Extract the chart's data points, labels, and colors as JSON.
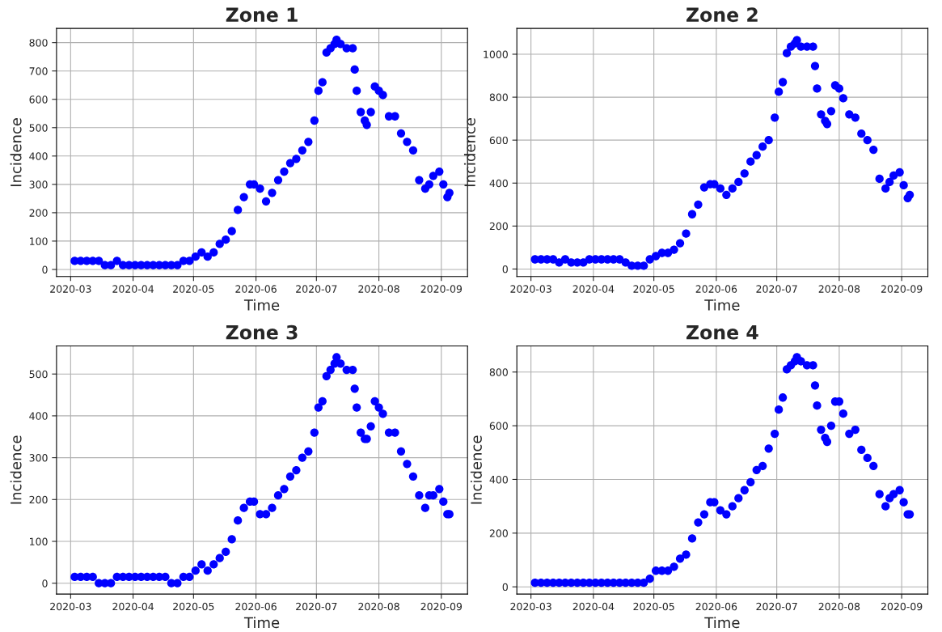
{
  "chart_data": [
    {
      "type": "scatter",
      "title": "Zone 1",
      "xlabel": "Time",
      "ylabel": "Incidence",
      "marker": "circle",
      "grid": true,
      "x": [
        "2020-03-03",
        "2020-03-06",
        "2020-03-09",
        "2020-03-12",
        "2020-03-15",
        "2020-03-18",
        "2020-03-21",
        "2020-03-24",
        "2020-03-27",
        "2020-03-30",
        "2020-04-02",
        "2020-04-05",
        "2020-04-08",
        "2020-04-11",
        "2020-04-14",
        "2020-04-17",
        "2020-04-20",
        "2020-04-23",
        "2020-04-26",
        "2020-04-29",
        "2020-05-02",
        "2020-05-05",
        "2020-05-08",
        "2020-05-11",
        "2020-05-14",
        "2020-05-17",
        "2020-05-20",
        "2020-05-23",
        "2020-05-26",
        "2020-05-29",
        "2020-05-31",
        "2020-06-03",
        "2020-06-06",
        "2020-06-09",
        "2020-06-12",
        "2020-06-15",
        "2020-06-18",
        "2020-06-21",
        "2020-06-24",
        "2020-06-27",
        "2020-06-30",
        "2020-07-02",
        "2020-07-04",
        "2020-07-06",
        "2020-07-08",
        "2020-07-10",
        "2020-07-11",
        "2020-07-13",
        "2020-07-16",
        "2020-07-19",
        "2020-07-20",
        "2020-07-21",
        "2020-07-23",
        "2020-07-25",
        "2020-07-26",
        "2020-07-28",
        "2020-07-30",
        "2020-08-01",
        "2020-08-03",
        "2020-08-06",
        "2020-08-09",
        "2020-08-12",
        "2020-08-15",
        "2020-08-18",
        "2020-08-21",
        "2020-08-24",
        "2020-08-26",
        "2020-08-28",
        "2020-08-31",
        "2020-09-02",
        "2020-09-04",
        "2020-09-05"
      ],
      "series": [
        {
          "color": "#0000ff",
          "values": [
            30,
            30,
            30,
            30,
            30,
            15,
            15,
            30,
            15,
            15,
            15,
            15,
            15,
            15,
            15,
            15,
            15,
            15,
            30,
            30,
            45,
            60,
            45,
            60,
            90,
            105,
            135,
            210,
            255,
            300,
            300,
            285,
            240,
            270,
            315,
            345,
            375,
            390,
            420,
            450,
            525,
            630,
            660,
            765,
            780,
            795,
            810,
            795,
            780,
            780,
            705,
            630,
            555,
            525,
            510,
            555,
            645,
            630,
            615,
            540,
            540,
            480,
            450,
            420,
            315,
            285,
            300,
            330,
            345,
            300,
            255,
            270
          ]
        }
      ],
      "xlim": [
        "2020-02-23",
        "2020-09-14"
      ],
      "xticks": [
        {
          "value": "2020-03-01",
          "label": "2020-03"
        },
        {
          "value": "2020-04-01",
          "label": "2020-04"
        },
        {
          "value": "2020-05-01",
          "label": "2020-05"
        },
        {
          "value": "2020-06-01",
          "label": "2020-06"
        },
        {
          "value": "2020-07-01",
          "label": "2020-07"
        },
        {
          "value": "2020-08-01",
          "label": "2020-08"
        },
        {
          "value": "2020-09-01",
          "label": "2020-09"
        }
      ],
      "ylim": [
        -25,
        850
      ],
      "yticks": [
        0,
        100,
        200,
        300,
        400,
        500,
        600,
        700,
        800
      ]
    },
    {
      "type": "scatter",
      "title": "Zone 2",
      "xlabel": "Time",
      "ylabel": "Incidence",
      "marker": "circle",
      "grid": true,
      "x": [
        "2020-03-03",
        "2020-03-06",
        "2020-03-09",
        "2020-03-12",
        "2020-03-15",
        "2020-03-18",
        "2020-03-21",
        "2020-03-24",
        "2020-03-27",
        "2020-03-30",
        "2020-04-02",
        "2020-04-05",
        "2020-04-08",
        "2020-04-11",
        "2020-04-14",
        "2020-04-17",
        "2020-04-20",
        "2020-04-23",
        "2020-04-26",
        "2020-04-29",
        "2020-05-02",
        "2020-05-05",
        "2020-05-08",
        "2020-05-11",
        "2020-05-14",
        "2020-05-17",
        "2020-05-20",
        "2020-05-23",
        "2020-05-26",
        "2020-05-29",
        "2020-05-31",
        "2020-06-03",
        "2020-06-06",
        "2020-06-09",
        "2020-06-12",
        "2020-06-15",
        "2020-06-18",
        "2020-06-21",
        "2020-06-24",
        "2020-06-27",
        "2020-06-30",
        "2020-07-02",
        "2020-07-04",
        "2020-07-06",
        "2020-07-08",
        "2020-07-10",
        "2020-07-11",
        "2020-07-13",
        "2020-07-16",
        "2020-07-19",
        "2020-07-20",
        "2020-07-21",
        "2020-07-23",
        "2020-07-25",
        "2020-07-26",
        "2020-07-28",
        "2020-07-30",
        "2020-08-01",
        "2020-08-03",
        "2020-08-06",
        "2020-08-09",
        "2020-08-12",
        "2020-08-15",
        "2020-08-18",
        "2020-08-21",
        "2020-08-24",
        "2020-08-26",
        "2020-08-28",
        "2020-08-31",
        "2020-09-02",
        "2020-09-04",
        "2020-09-05"
      ],
      "series": [
        {
          "color": "#0000ff",
          "values": [
            45,
            45,
            45,
            45,
            30,
            45,
            30,
            30,
            30,
            45,
            45,
            45,
            45,
            45,
            45,
            30,
            15,
            15,
            15,
            45,
            60,
            75,
            75,
            90,
            120,
            165,
            255,
            300,
            380,
            395,
            395,
            375,
            345,
            375,
            405,
            445,
            500,
            530,
            570,
            600,
            705,
            825,
            870,
            1005,
            1035,
            1050,
            1065,
            1035,
            1035,
            1035,
            945,
            840,
            720,
            690,
            675,
            735,
            855,
            840,
            795,
            720,
            705,
            630,
            600,
            555,
            420,
            375,
            405,
            435,
            450,
            390,
            330,
            345
          ]
        }
      ],
      "xlim": [
        "2020-02-23",
        "2020-09-14"
      ],
      "xticks": [
        {
          "value": "2020-03-01",
          "label": "2020-03"
        },
        {
          "value": "2020-04-01",
          "label": "2020-04"
        },
        {
          "value": "2020-05-01",
          "label": "2020-05"
        },
        {
          "value": "2020-06-01",
          "label": "2020-06"
        },
        {
          "value": "2020-07-01",
          "label": "2020-07"
        },
        {
          "value": "2020-08-01",
          "label": "2020-08"
        },
        {
          "value": "2020-09-01",
          "label": "2020-09"
        }
      ],
      "ylim": [
        -35,
        1120
      ],
      "yticks": [
        0,
        200,
        400,
        600,
        800,
        1000
      ]
    },
    {
      "type": "scatter",
      "title": "Zone 3",
      "xlabel": "Time",
      "ylabel": "Incidence",
      "marker": "circle",
      "grid": true,
      "x": [
        "2020-03-03",
        "2020-03-06",
        "2020-03-09",
        "2020-03-12",
        "2020-03-15",
        "2020-03-18",
        "2020-03-21",
        "2020-03-24",
        "2020-03-27",
        "2020-03-30",
        "2020-04-02",
        "2020-04-05",
        "2020-04-08",
        "2020-04-11",
        "2020-04-14",
        "2020-04-17",
        "2020-04-20",
        "2020-04-23",
        "2020-04-26",
        "2020-04-29",
        "2020-05-02",
        "2020-05-05",
        "2020-05-08",
        "2020-05-11",
        "2020-05-14",
        "2020-05-17",
        "2020-05-20",
        "2020-05-23",
        "2020-05-26",
        "2020-05-29",
        "2020-05-31",
        "2020-06-03",
        "2020-06-06",
        "2020-06-09",
        "2020-06-12",
        "2020-06-15",
        "2020-06-18",
        "2020-06-21",
        "2020-06-24",
        "2020-06-27",
        "2020-06-30",
        "2020-07-02",
        "2020-07-04",
        "2020-07-06",
        "2020-07-08",
        "2020-07-10",
        "2020-07-11",
        "2020-07-13",
        "2020-07-16",
        "2020-07-19",
        "2020-07-20",
        "2020-07-21",
        "2020-07-23",
        "2020-07-25",
        "2020-07-26",
        "2020-07-28",
        "2020-07-30",
        "2020-08-01",
        "2020-08-03",
        "2020-08-06",
        "2020-08-09",
        "2020-08-12",
        "2020-08-15",
        "2020-08-18",
        "2020-08-21",
        "2020-08-24",
        "2020-08-26",
        "2020-08-28",
        "2020-08-31",
        "2020-09-02",
        "2020-09-04",
        "2020-09-05"
      ],
      "series": [
        {
          "color": "#0000ff",
          "values": [
            15,
            15,
            15,
            15,
            0,
            0,
            0,
            15,
            15,
            15,
            15,
            15,
            15,
            15,
            15,
            15,
            0,
            0,
            15,
            15,
            30,
            45,
            30,
            45,
            60,
            75,
            105,
            150,
            180,
            195,
            195,
            165,
            165,
            180,
            210,
            225,
            255,
            270,
            300,
            315,
            360,
            420,
            435,
            495,
            510,
            525,
            540,
            525,
            510,
            510,
            465,
            420,
            360,
            345,
            345,
            375,
            435,
            420,
            405,
            360,
            360,
            315,
            285,
            255,
            210,
            180,
            210,
            210,
            225,
            195,
            165,
            165
          ]
        }
      ],
      "xlim": [
        "2020-02-23",
        "2020-09-14"
      ],
      "xticks": [
        {
          "value": "2020-03-01",
          "label": "2020-03"
        },
        {
          "value": "2020-04-01",
          "label": "2020-04"
        },
        {
          "value": "2020-05-01",
          "label": "2020-05"
        },
        {
          "value": "2020-06-01",
          "label": "2020-06"
        },
        {
          "value": "2020-07-01",
          "label": "2020-07"
        },
        {
          "value": "2020-08-01",
          "label": "2020-08"
        },
        {
          "value": "2020-09-01",
          "label": "2020-09"
        }
      ],
      "ylim": [
        -26,
        567
      ],
      "yticks": [
        0,
        100,
        200,
        300,
        400,
        500
      ]
    },
    {
      "type": "scatter",
      "title": "Zone 4",
      "xlabel": "Time",
      "ylabel": "Incidence",
      "marker": "circle",
      "grid": true,
      "x": [
        "2020-03-03",
        "2020-03-06",
        "2020-03-09",
        "2020-03-12",
        "2020-03-15",
        "2020-03-18",
        "2020-03-21",
        "2020-03-24",
        "2020-03-27",
        "2020-03-30",
        "2020-04-02",
        "2020-04-05",
        "2020-04-08",
        "2020-04-11",
        "2020-04-14",
        "2020-04-17",
        "2020-04-20",
        "2020-04-23",
        "2020-04-26",
        "2020-04-29",
        "2020-05-02",
        "2020-05-05",
        "2020-05-08",
        "2020-05-11",
        "2020-05-14",
        "2020-05-17",
        "2020-05-20",
        "2020-05-23",
        "2020-05-26",
        "2020-05-29",
        "2020-05-31",
        "2020-06-03",
        "2020-06-06",
        "2020-06-09",
        "2020-06-12",
        "2020-06-15",
        "2020-06-18",
        "2020-06-21",
        "2020-06-24",
        "2020-06-27",
        "2020-06-30",
        "2020-07-02",
        "2020-07-04",
        "2020-07-06",
        "2020-07-08",
        "2020-07-10",
        "2020-07-11",
        "2020-07-13",
        "2020-07-16",
        "2020-07-19",
        "2020-07-20",
        "2020-07-21",
        "2020-07-23",
        "2020-07-25",
        "2020-07-26",
        "2020-07-28",
        "2020-07-30",
        "2020-08-01",
        "2020-08-03",
        "2020-08-06",
        "2020-08-09",
        "2020-08-12",
        "2020-08-15",
        "2020-08-18",
        "2020-08-21",
        "2020-08-24",
        "2020-08-26",
        "2020-08-28",
        "2020-08-31",
        "2020-09-02",
        "2020-09-04",
        "2020-09-05"
      ],
      "series": [
        {
          "color": "#0000ff",
          "values": [
            15,
            15,
            15,
            15,
            15,
            15,
            15,
            15,
            15,
            15,
            15,
            15,
            15,
            15,
            15,
            15,
            15,
            15,
            15,
            30,
            60,
            60,
            60,
            75,
            105,
            120,
            180,
            240,
            270,
            315,
            315,
            285,
            270,
            300,
            330,
            360,
            390,
            435,
            450,
            515,
            570,
            660,
            705,
            810,
            825,
            840,
            855,
            840,
            825,
            825,
            750,
            675,
            585,
            555,
            540,
            600,
            690,
            690,
            645,
            570,
            585,
            510,
            480,
            450,
            345,
            300,
            330,
            345,
            360,
            315,
            270,
            270
          ]
        }
      ],
      "xlim": [
        "2020-02-23",
        "2020-09-14"
      ],
      "xticks": [
        {
          "value": "2020-03-01",
          "label": "2020-03"
        },
        {
          "value": "2020-04-01",
          "label": "2020-04"
        },
        {
          "value": "2020-05-01",
          "label": "2020-05"
        },
        {
          "value": "2020-06-01",
          "label": "2020-06"
        },
        {
          "value": "2020-07-01",
          "label": "2020-07"
        },
        {
          "value": "2020-08-01",
          "label": "2020-08"
        },
        {
          "value": "2020-09-01",
          "label": "2020-09"
        }
      ],
      "ylim": [
        -27,
        897
      ],
      "yticks": [
        0,
        200,
        400,
        600,
        800
      ]
    }
  ]
}
